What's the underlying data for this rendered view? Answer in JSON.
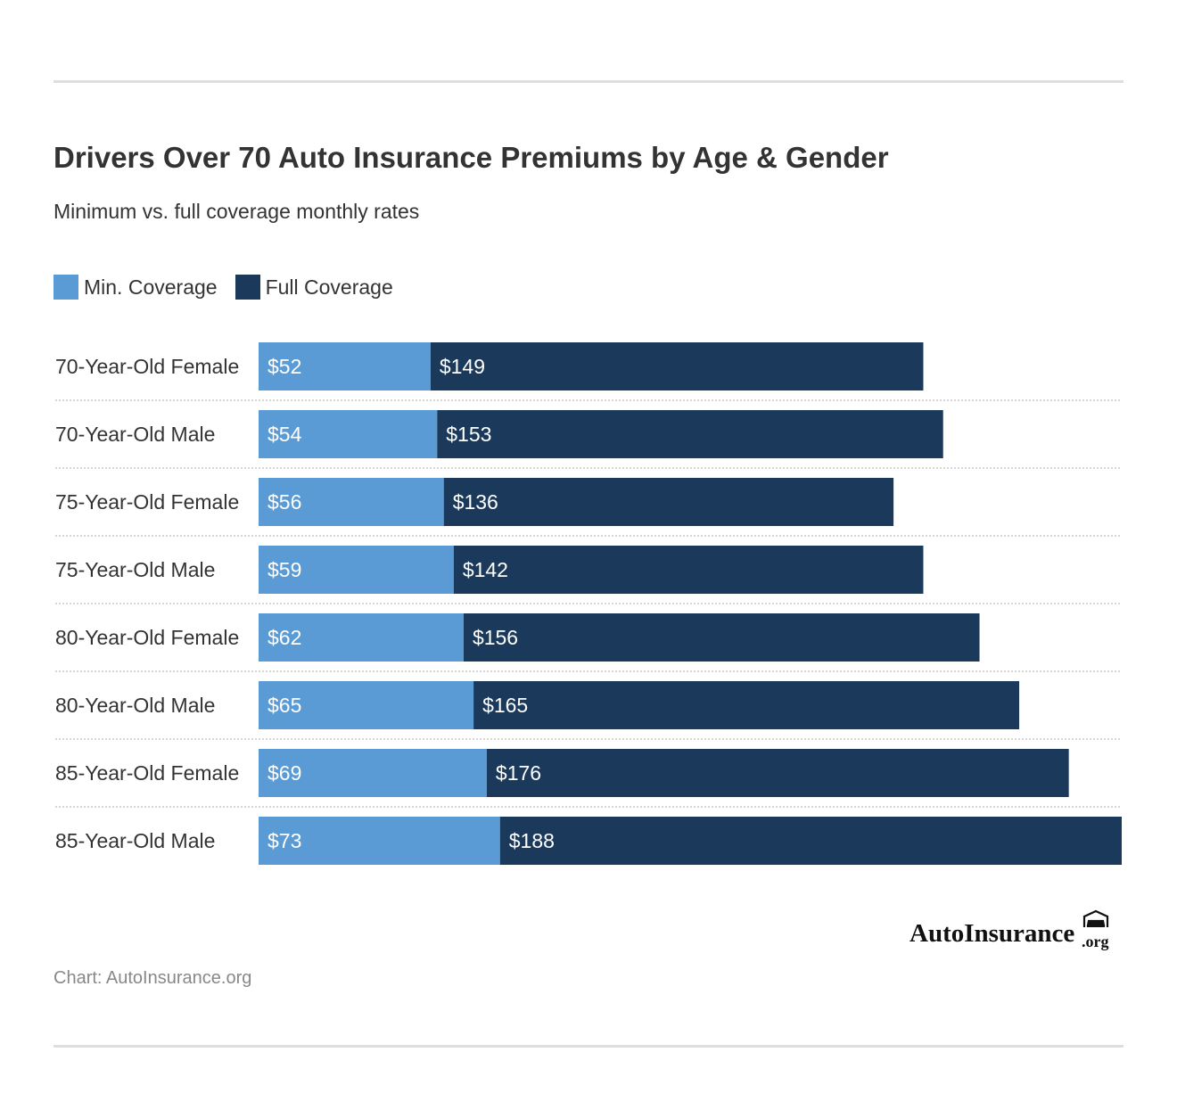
{
  "header": {
    "title": "Drivers Over 70 Auto Insurance Premiums by Age & Gender",
    "subtitle": "Minimum vs. full coverage monthly rates"
  },
  "legend": [
    {
      "label": "Min. Coverage",
      "color": "#5b9bd5"
    },
    {
      "label": "Full Coverage",
      "color": "#1b3a5b"
    }
  ],
  "chart_data": {
    "type": "bar",
    "orientation": "horizontal",
    "stacked": true,
    "categories": [
      "70-Year-Old Female",
      "70-Year-Old Male",
      "75-Year-Old Female",
      "75-Year-Old Male",
      "80-Year-Old Female",
      "80-Year-Old Male",
      "85-Year-Old Female",
      "85-Year-Old Male"
    ],
    "series": [
      {
        "name": "Min. Coverage",
        "color": "#5b9bd5",
        "values": [
          52,
          54,
          56,
          59,
          62,
          65,
          69,
          73
        ],
        "labels": [
          "$52",
          "$54",
          "$56",
          "$59",
          "$62",
          "$65",
          "$69",
          "$73"
        ]
      },
      {
        "name": "Full Coverage",
        "color": "#1b3a5b",
        "values": [
          149,
          153,
          136,
          142,
          156,
          165,
          176,
          188
        ],
        "labels": [
          "$149",
          "$153",
          "$136",
          "$142",
          "$156",
          "$165",
          "$176",
          "$188"
        ]
      }
    ],
    "title": "Drivers Over 70 Auto Insurance Premiums by Age & Gender",
    "subtitle": "Minimum vs. full coverage monthly rates",
    "xlim": [
      0,
      261
    ],
    "grid": false,
    "legend_position": "top-left"
  },
  "footer": {
    "source": "Chart: AutoInsurance.org",
    "logo_text": "AutoInsurance",
    "logo_suffix": ".org"
  }
}
